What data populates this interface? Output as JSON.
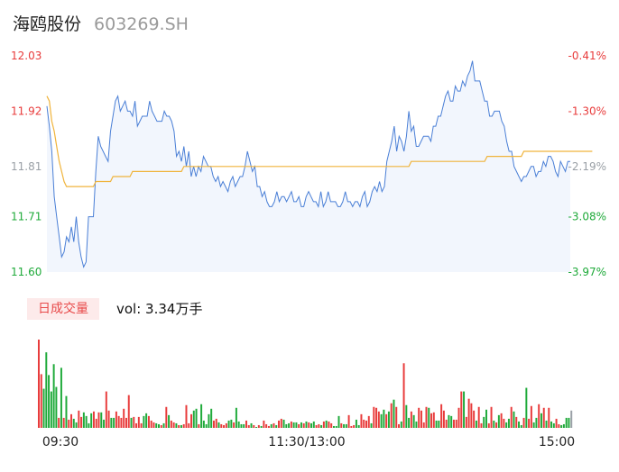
{
  "header": {
    "name": "海鸥股份",
    "code": "603269.SH"
  },
  "volume_panel": {
    "tag": "日成交量",
    "value": "vol: 3.34万手"
  },
  "colors": {
    "price": "#4a7fd6",
    "avg": "#f0b43c",
    "up": "#e83b3b",
    "down": "#1faa3a",
    "flat": "#9aa0a6",
    "fill": "#f2f6fd"
  },
  "chart_data": {
    "type": "line",
    "price_axis": {
      "ylim": [
        11.6,
        12.03
      ],
      "ticks": [
        {
          "price": 12.03,
          "label": "12.03",
          "pct": "-0.41%"
        },
        {
          "price": 11.92,
          "label": "11.92",
          "pct": "-1.30%"
        },
        {
          "price": 11.81,
          "label": "11.81",
          "pct": "-2.19%"
        },
        {
          "price": 11.71,
          "label": "11.71",
          "pct": "-3.08%"
        },
        {
          "price": 11.6,
          "label": "11.60",
          "pct": "-3.97%"
        }
      ]
    },
    "x_ticks": [
      "09:30",
      "11:30/13:00",
      "15:00"
    ],
    "price": [
      11.93,
      11.89,
      11.84,
      11.75,
      11.71,
      11.67,
      11.63,
      11.64,
      11.67,
      11.66,
      11.69,
      11.66,
      11.71,
      11.66,
      11.63,
      11.61,
      11.62,
      11.71,
      11.71,
      11.71,
      11.8,
      11.87,
      11.85,
      11.84,
      11.83,
      11.82,
      11.88,
      11.91,
      11.94,
      11.95,
      11.92,
      11.93,
      11.94,
      11.92,
      11.92,
      11.91,
      11.94,
      11.89,
      11.9,
      11.91,
      11.91,
      11.91,
      11.94,
      11.92,
      11.91,
      11.9,
      11.9,
      11.9,
      11.92,
      11.91,
      11.91,
      11.9,
      11.88,
      11.83,
      11.84,
      11.82,
      11.85,
      11.81,
      11.84,
      11.79,
      11.81,
      11.79,
      11.81,
      11.8,
      11.83,
      11.82,
      11.81,
      11.81,
      11.79,
      11.78,
      11.79,
      11.77,
      11.78,
      11.77,
      11.76,
      11.78,
      11.79,
      11.77,
      11.78,
      11.79,
      11.79,
      11.81,
      11.84,
      11.82,
      11.8,
      11.81,
      11.77,
      11.77,
      11.75,
      11.76,
      11.74,
      11.73,
      11.73,
      11.74,
      11.76,
      11.74,
      11.75,
      11.75,
      11.74,
      11.75,
      11.76,
      11.74,
      11.74,
      11.75,
      11.73,
      11.73,
      11.75,
      11.76,
      11.75,
      11.74,
      11.74,
      11.73,
      11.76,
      11.73,
      11.74,
      11.76,
      11.74,
      11.74,
      11.74,
      11.73,
      11.73,
      11.74,
      11.76,
      11.74,
      11.74,
      11.73,
      11.74,
      11.74,
      11.73,
      11.75,
      11.76,
      11.73,
      11.74,
      11.76,
      11.77,
      11.76,
      11.78,
      11.76,
      11.77,
      11.82,
      11.84,
      11.86,
      11.89,
      11.84,
      11.87,
      11.86,
      11.84,
      11.87,
      11.92,
      11.88,
      11.89,
      11.85,
      11.85,
      11.86,
      11.87,
      11.87,
      11.87,
      11.86,
      11.89,
      11.89,
      11.91,
      11.91,
      11.93,
      11.95,
      11.96,
      11.94,
      11.94,
      11.97,
      11.96,
      11.96,
      11.98,
      11.97,
      11.99,
      12.0,
      12.02,
      11.98,
      11.98,
      11.98,
      11.96,
      11.94,
      11.94,
      11.91,
      11.91,
      11.92,
      11.92,
      11.92,
      11.9,
      11.89,
      11.86,
      11.84,
      11.84,
      11.81,
      11.8,
      11.79,
      11.78,
      11.79,
      11.79,
      11.8,
      11.81,
      11.81,
      11.79,
      11.8,
      11.8,
      11.82,
      11.81,
      11.83,
      11.83,
      11.82,
      11.8,
      11.79,
      11.82,
      11.81,
      11.8,
      11.82,
      11.82
    ],
    "avg": [
      11.95,
      11.94,
      11.9,
      11.88,
      11.85,
      11.82,
      11.8,
      11.78,
      11.77,
      11.77,
      11.77,
      11.77,
      11.77,
      11.77,
      11.77,
      11.77,
      11.77,
      11.77,
      11.77,
      11.77,
      11.78,
      11.78,
      11.78,
      11.78,
      11.78,
      11.78,
      11.78,
      11.79,
      11.79,
      11.79,
      11.79,
      11.79,
      11.79,
      11.79,
      11.79,
      11.8,
      11.8,
      11.8,
      11.8,
      11.8,
      11.8,
      11.8,
      11.8,
      11.8,
      11.8,
      11.8,
      11.8,
      11.8,
      11.8,
      11.8,
      11.8,
      11.8,
      11.8,
      11.8,
      11.8,
      11.8,
      11.81,
      11.81,
      11.81,
      11.81,
      11.81,
      11.81,
      11.81,
      11.81,
      11.81,
      11.81,
      11.81,
      11.81,
      11.81,
      11.81,
      11.81,
      11.81,
      11.81,
      11.81,
      11.81,
      11.81,
      11.81,
      11.81,
      11.81,
      11.81,
      11.81,
      11.81,
      11.81,
      11.81,
      11.81,
      11.81,
      11.81,
      11.81,
      11.81,
      11.81,
      11.81,
      11.81,
      11.81,
      11.81,
      11.81,
      11.81,
      11.81,
      11.81,
      11.81,
      11.81,
      11.81,
      11.81,
      11.81,
      11.81,
      11.81,
      11.81,
      11.81,
      11.81,
      11.81,
      11.81,
      11.81,
      11.81,
      11.81,
      11.81,
      11.81,
      11.81,
      11.81,
      11.81,
      11.81,
      11.81,
      11.81,
      11.81,
      11.81,
      11.81,
      11.81,
      11.81,
      11.81,
      11.81,
      11.81,
      11.81,
      11.81,
      11.81,
      11.81,
      11.81,
      11.81,
      11.81,
      11.81,
      11.81,
      11.81,
      11.81,
      11.81,
      11.81,
      11.81,
      11.81,
      11.81,
      11.81,
      11.81,
      11.81,
      11.81,
      11.82,
      11.82,
      11.82,
      11.82,
      11.82,
      11.82,
      11.82,
      11.82,
      11.82,
      11.82,
      11.82,
      11.82,
      11.82,
      11.82,
      11.82,
      11.82,
      11.82,
      11.82,
      11.82,
      11.82,
      11.82,
      11.82,
      11.82,
      11.82,
      11.82,
      11.82,
      11.82,
      11.82,
      11.82,
      11.82,
      11.82,
      11.83,
      11.83,
      11.83,
      11.83,
      11.83,
      11.83,
      11.83,
      11.83,
      11.83,
      11.83,
      11.83,
      11.83,
      11.83,
      11.83,
      11.83,
      11.84,
      11.84,
      11.84,
      11.84,
      11.84,
      11.84,
      11.84,
      11.84,
      11.84,
      11.84,
      11.84,
      11.84,
      11.84,
      11.84,
      11.84,
      11.84,
      11.84,
      11.84,
      11.84,
      11.84,
      11.84,
      11.84,
      11.84,
      11.84,
      11.84,
      11.84,
      11.84,
      11.84,
      11.84
    ],
    "volume": [
      {
        "v": 97,
        "d": 1
      },
      {
        "v": 59,
        "d": 1
      },
      {
        "v": 43,
        "d": -1
      },
      {
        "v": 83,
        "d": -1
      },
      {
        "v": 58,
        "d": -1
      },
      {
        "v": 40,
        "d": -1
      },
      {
        "v": 70,
        "d": -1
      },
      {
        "v": 45,
        "d": -1
      },
      {
        "v": 11,
        "d": 1
      },
      {
        "v": 66,
        "d": -1
      },
      {
        "v": 11,
        "d": 1
      },
      {
        "v": 35,
        "d": -1
      },
      {
        "v": 9,
        "d": 1
      },
      {
        "v": 15,
        "d": 1
      },
      {
        "v": 10,
        "d": -1
      },
      {
        "v": 6,
        "d": -1
      },
      {
        "v": 19,
        "d": 1
      },
      {
        "v": 12,
        "d": 1
      },
      {
        "v": 17,
        "d": -1
      },
      {
        "v": 13,
        "d": -1
      },
      {
        "v": 5,
        "d": -1
      },
      {
        "v": 16,
        "d": -1
      },
      {
        "v": 18,
        "d": 1
      },
      {
        "v": 10,
        "d": 1
      },
      {
        "v": 17,
        "d": 1
      },
      {
        "v": 17,
        "d": -1
      },
      {
        "v": 9,
        "d": -1
      },
      {
        "v": 40,
        "d": 1
      },
      {
        "v": 19,
        "d": 1
      },
      {
        "v": 11,
        "d": -1
      },
      {
        "v": 11,
        "d": -1
      },
      {
        "v": 18,
        "d": 1
      },
      {
        "v": 13,
        "d": 1
      },
      {
        "v": 11,
        "d": 1
      },
      {
        "v": 21,
        "d": 1
      },
      {
        "v": 11,
        "d": 1
      },
      {
        "v": 36,
        "d": 1
      },
      {
        "v": 11,
        "d": -1
      },
      {
        "v": 12,
        "d": 1
      },
      {
        "v": 5,
        "d": 1
      },
      {
        "v": 12,
        "d": 1
      },
      {
        "v": 5,
        "d": 1
      },
      {
        "v": 13,
        "d": -1
      },
      {
        "v": 16,
        "d": -1
      },
      {
        "v": 13,
        "d": 1
      },
      {
        "v": 8,
        "d": 1
      },
      {
        "v": 6,
        "d": 1
      },
      {
        "v": 5,
        "d": -1
      },
      {
        "v": 4,
        "d": -1
      },
      {
        "v": 3,
        "d": 1
      },
      {
        "v": 5,
        "d": -1
      },
      {
        "v": 23,
        "d": 1
      },
      {
        "v": 14,
        "d": -1
      },
      {
        "v": 8,
        "d": 1
      },
      {
        "v": 6,
        "d": 1
      },
      {
        "v": 5,
        "d": -1
      },
      {
        "v": 3,
        "d": 1
      },
      {
        "v": 3,
        "d": -1
      },
      {
        "v": 4,
        "d": 1
      },
      {
        "v": 25,
        "d": 1
      },
      {
        "v": 5,
        "d": 1
      },
      {
        "v": 15,
        "d": 1
      },
      {
        "v": 19,
        "d": -1
      },
      {
        "v": 21,
        "d": -1
      },
      {
        "v": 4,
        "d": 1
      },
      {
        "v": 26,
        "d": -1
      },
      {
        "v": 8,
        "d": -1
      },
      {
        "v": 4,
        "d": -1
      },
      {
        "v": 15,
        "d": -1
      },
      {
        "v": 21,
        "d": -1
      },
      {
        "v": 8,
        "d": 1
      },
      {
        "v": 10,
        "d": 1
      },
      {
        "v": 6,
        "d": -1
      },
      {
        "v": 4,
        "d": 1
      },
      {
        "v": 3,
        "d": 1
      },
      {
        "v": 5,
        "d": 1
      },
      {
        "v": 8,
        "d": -1
      },
      {
        "v": 9,
        "d": -1
      },
      {
        "v": 6,
        "d": 1
      },
      {
        "v": 22,
        "d": -1
      },
      {
        "v": 7,
        "d": -1
      },
      {
        "v": 4,
        "d": -1
      },
      {
        "v": 4,
        "d": -1
      },
      {
        "v": 8,
        "d": 1
      },
      {
        "v": 3,
        "d": 1
      },
      {
        "v": 5,
        "d": -1
      },
      {
        "v": 3,
        "d": 1
      },
      {
        "v": 1,
        "d": -1
      },
      {
        "v": 3,
        "d": 1
      },
      {
        "v": 2,
        "d": -1
      },
      {
        "v": 8,
        "d": 1
      },
      {
        "v": 4,
        "d": 1
      },
      {
        "v": 2,
        "d": 1
      },
      {
        "v": 4,
        "d": -1
      },
      {
        "v": 5,
        "d": 1
      },
      {
        "v": 3,
        "d": -1
      },
      {
        "v": 8,
        "d": 1
      },
      {
        "v": 10,
        "d": 1
      },
      {
        "v": 9,
        "d": -1
      },
      {
        "v": 4,
        "d": -1
      },
      {
        "v": 5,
        "d": -1
      },
      {
        "v": 7,
        "d": 1
      },
      {
        "v": 6,
        "d": -1
      },
      {
        "v": 6,
        "d": -1
      },
      {
        "v": 4,
        "d": 1
      },
      {
        "v": 6,
        "d": -1
      },
      {
        "v": 5,
        "d": 1
      },
      {
        "v": 7,
        "d": -1
      },
      {
        "v": 6,
        "d": 1
      },
      {
        "v": 5,
        "d": -1
      },
      {
        "v": 7,
        "d": -1
      },
      {
        "v": 3,
        "d": 1
      },
      {
        "v": 4,
        "d": 1
      },
      {
        "v": 3,
        "d": -1
      },
      {
        "v": 7,
        "d": 1
      },
      {
        "v": 8,
        "d": -1
      },
      {
        "v": 7,
        "d": 1
      },
      {
        "v": 5,
        "d": 1
      },
      {
        "v": 2,
        "d": -1
      },
      {
        "v": 2,
        "d": -1
      },
      {
        "v": 13,
        "d": -1
      },
      {
        "v": 5,
        "d": 1
      },
      {
        "v": 4,
        "d": -1
      },
      {
        "v": 4,
        "d": -1
      },
      {
        "v": 14,
        "d": 1
      },
      {
        "v": 2,
        "d": 1
      },
      {
        "v": 3,
        "d": 1
      },
      {
        "v": 9,
        "d": -1
      },
      {
        "v": 3,
        "d": -1
      },
      {
        "v": 15,
        "d": 1
      },
      {
        "v": 9,
        "d": 1
      },
      {
        "v": 8,
        "d": 1
      },
      {
        "v": 13,
        "d": 1
      },
      {
        "v": 5,
        "d": -1
      },
      {
        "v": 23,
        "d": 1
      },
      {
        "v": 22,
        "d": 1
      },
      {
        "v": 18,
        "d": 1
      },
      {
        "v": 15,
        "d": -1
      },
      {
        "v": 20,
        "d": -1
      },
      {
        "v": 15,
        "d": 1
      },
      {
        "v": 18,
        "d": -1
      },
      {
        "v": 27,
        "d": 1
      },
      {
        "v": 31,
        "d": -1
      },
      {
        "v": 23,
        "d": 1
      },
      {
        "v": 4,
        "d": 1
      },
      {
        "v": 7,
        "d": -1
      },
      {
        "v": 71,
        "d": 1
      },
      {
        "v": 25,
        "d": -1
      },
      {
        "v": 11,
        "d": -1
      },
      {
        "v": 18,
        "d": 1
      },
      {
        "v": 14,
        "d": -1
      },
      {
        "v": 7,
        "d": -1
      },
      {
        "v": 22,
        "d": 1
      },
      {
        "v": 19,
        "d": 1
      },
      {
        "v": 6,
        "d": 1
      },
      {
        "v": 23,
        "d": 1
      },
      {
        "v": 22,
        "d": -1
      },
      {
        "v": 16,
        "d": 1
      },
      {
        "v": 17,
        "d": 1
      },
      {
        "v": 8,
        "d": -1
      },
      {
        "v": 8,
        "d": -1
      },
      {
        "v": 26,
        "d": 1
      },
      {
        "v": 19,
        "d": 1
      },
      {
        "v": 9,
        "d": 1
      },
      {
        "v": 14,
        "d": -1
      },
      {
        "v": 13,
        "d": -1
      },
      {
        "v": 9,
        "d": 1
      },
      {
        "v": 9,
        "d": 1
      },
      {
        "v": 22,
        "d": 1
      },
      {
        "v": 40,
        "d": 1
      },
      {
        "v": 40,
        "d": -1
      },
      {
        "v": 12,
        "d": 1
      },
      {
        "v": 32,
        "d": 1
      },
      {
        "v": 27,
        "d": 1
      },
      {
        "v": 19,
        "d": 1
      },
      {
        "v": 8,
        "d": -1
      },
      {
        "v": 23,
        "d": 1
      },
      {
        "v": 5,
        "d": 1
      },
      {
        "v": 12,
        "d": -1
      },
      {
        "v": 20,
        "d": -1
      },
      {
        "v": 5,
        "d": 1
      },
      {
        "v": 23,
        "d": 1
      },
      {
        "v": 8,
        "d": -1
      },
      {
        "v": 6,
        "d": 1
      },
      {
        "v": 14,
        "d": -1
      },
      {
        "v": 16,
        "d": 1
      },
      {
        "v": 10,
        "d": 1
      },
      {
        "v": 6,
        "d": -1
      },
      {
        "v": 10,
        "d": -1
      },
      {
        "v": 23,
        "d": 1
      },
      {
        "v": 18,
        "d": -1
      },
      {
        "v": 12,
        "d": 1
      },
      {
        "v": 7,
        "d": -1
      },
      {
        "v": 3,
        "d": -1
      },
      {
        "v": 11,
        "d": 1
      },
      {
        "v": 44,
        "d": -1
      },
      {
        "v": 10,
        "d": 1
      },
      {
        "v": 24,
        "d": 1
      },
      {
        "v": 6,
        "d": -1
      },
      {
        "v": 11,
        "d": -1
      },
      {
        "v": 26,
        "d": 1
      },
      {
        "v": 16,
        "d": -1
      },
      {
        "v": 22,
        "d": 1
      },
      {
        "v": 8,
        "d": -1
      },
      {
        "v": 22,
        "d": 1
      },
      {
        "v": 7,
        "d": -1
      },
      {
        "v": 5,
        "d": -1
      },
      {
        "v": 10,
        "d": 1
      },
      {
        "v": 4,
        "d": 1
      },
      {
        "v": 3,
        "d": -1
      },
      {
        "v": 4,
        "d": -1
      },
      {
        "v": 11,
        "d": -1
      },
      {
        "v": 11,
        "d": -1
      },
      {
        "v": 19,
        "d": 0
      }
    ]
  }
}
